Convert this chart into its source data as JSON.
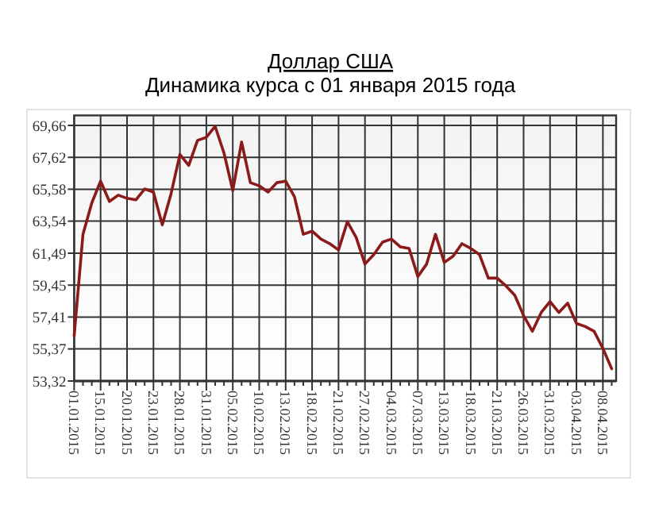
{
  "chart_data": {
    "type": "line",
    "title": "Доллар США",
    "subtitle": "Динамика курса с 01 января 2015 года",
    "categories": [
      "01.01.2015",
      null,
      null,
      "15.01.2015",
      null,
      null,
      "20.01.2015",
      null,
      null,
      "23.01.2015",
      null,
      null,
      "28.01.2015",
      null,
      null,
      "31.01.2015",
      null,
      null,
      "05.02.2015",
      null,
      null,
      "10.02.2015",
      null,
      null,
      "13.02.2015",
      null,
      null,
      "18.02.2015",
      null,
      null,
      "21.02.2015",
      null,
      null,
      "27.02.2015",
      null,
      null,
      "04.03.2015",
      null,
      null,
      "07.03.2015",
      null,
      null,
      "13.03.2015",
      null,
      null,
      "18.03.2015",
      null,
      null,
      "21.03.2015",
      null,
      null,
      "26.03.2015",
      null,
      null,
      "31.03.2015",
      null,
      null,
      "03.04.2015",
      null,
      null,
      "08.04.2015",
      null
    ],
    "series": [
      {
        "color": "#8b1a1a",
        "values": [
          56.2,
          62.7,
          64.7,
          66.1,
          64.8,
          65.2,
          65.0,
          64.9,
          65.6,
          65.4,
          63.3,
          65.3,
          67.8,
          67.1,
          68.7,
          68.9,
          69.6,
          67.9,
          65.5,
          68.6,
          66.0,
          65.8,
          65.4,
          66.0,
          66.1,
          65.1,
          62.7,
          62.9,
          62.4,
          62.1,
          61.7,
          63.5,
          62.5,
          60.8,
          61.4,
          62.2,
          62.4,
          61.9,
          61.8,
          60.0,
          60.8,
          62.7,
          60.9,
          61.3,
          62.1,
          61.8,
          61.4,
          59.9,
          59.9,
          59.4,
          58.8,
          57.5,
          56.5,
          57.7,
          58.4,
          57.7,
          58.3,
          57.0,
          56.8,
          56.5,
          55.4,
          54.1
        ]
      }
    ],
    "ylim": [
      53.32,
      70.3
    ],
    "yticks": [
      {
        "value": 53.32,
        "label": "53,32"
      },
      {
        "value": 55.37,
        "label": "55,37"
      },
      {
        "value": 57.41,
        "label": "57,41"
      },
      {
        "value": 59.45,
        "label": "59,45"
      },
      {
        "value": 61.49,
        "label": "61,49"
      },
      {
        "value": 63.54,
        "label": "63,54"
      },
      {
        "value": 65.58,
        "label": "65,58"
      },
      {
        "value": 67.62,
        "label": "67,62"
      },
      {
        "value": 69.66,
        "label": "69,66"
      }
    ],
    "grid": true,
    "marker": "none",
    "line_style": "solid"
  }
}
